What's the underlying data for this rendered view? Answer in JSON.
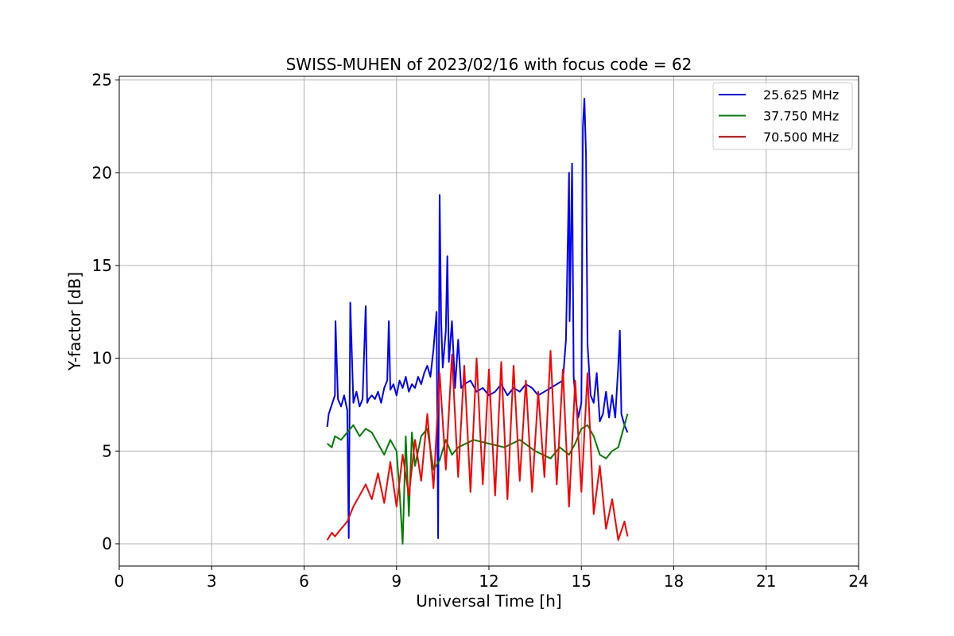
{
  "chart_data": {
    "type": "line",
    "title": "SWISS-MUHEN of 2023/02/16 with focus code = 62",
    "xlabel": "Universal Time [h]",
    "ylabel": "Y-factor [dB]",
    "xlim": [
      0,
      24
    ],
    "ylim": [
      -1.2,
      25.2
    ],
    "xticks": [
      0,
      3,
      6,
      9,
      12,
      15,
      18,
      21,
      24
    ],
    "yticks": [
      0,
      5,
      10,
      15,
      20,
      25
    ],
    "grid": true,
    "legend_position": "top-right",
    "series": [
      {
        "name": "25.625 MHz",
        "color": "#0000ff",
        "x": [
          6.75,
          6.8,
          6.9,
          7.0,
          7.02,
          7.1,
          7.2,
          7.3,
          7.4,
          7.45,
          7.5,
          7.6,
          7.7,
          7.8,
          7.9,
          8.0,
          8.05,
          8.1,
          8.2,
          8.3,
          8.4,
          8.5,
          8.6,
          8.7,
          8.75,
          8.8,
          8.9,
          9.0,
          9.1,
          9.2,
          9.3,
          9.4,
          9.5,
          9.6,
          9.7,
          9.8,
          9.9,
          10.0,
          10.1,
          10.2,
          10.3,
          10.35,
          10.4,
          10.45,
          10.5,
          10.6,
          10.65,
          10.7,
          10.8,
          10.9,
          11.0,
          11.1,
          11.2,
          11.4,
          11.6,
          11.8,
          12.0,
          12.2,
          12.4,
          12.6,
          12.8,
          13.0,
          13.2,
          13.4,
          13.6,
          13.8,
          14.0,
          14.2,
          14.4,
          14.5,
          14.6,
          14.62,
          14.7,
          14.75,
          14.8,
          14.9,
          15.0,
          15.05,
          15.1,
          15.15,
          15.2,
          15.3,
          15.4,
          15.5,
          15.6,
          15.7,
          15.8,
          15.9,
          16.0,
          16.1,
          16.2,
          16.25,
          16.3,
          16.4,
          16.5
        ],
        "values": [
          6.3,
          7.0,
          7.5,
          8.0,
          12.0,
          7.8,
          7.4,
          8.0,
          7.2,
          0.3,
          13.0,
          7.6,
          8.2,
          7.4,
          7.8,
          12.8,
          7.6,
          7.8,
          8.0,
          7.8,
          8.2,
          7.6,
          8.4,
          8.8,
          12.0,
          8.3,
          8.6,
          8.0,
          8.8,
          8.4,
          9.0,
          8.2,
          8.6,
          8.4,
          9.0,
          8.6,
          9.2,
          9.6,
          9.0,
          10.5,
          12.5,
          0.3,
          18.8,
          12.0,
          9.5,
          11.5,
          15.5,
          9.8,
          12.0,
          8.4,
          11.0,
          8.4,
          8.6,
          8.8,
          8.2,
          8.4,
          8.0,
          8.2,
          8.6,
          8.0,
          8.4,
          8.2,
          8.6,
          8.4,
          8.0,
          8.2,
          8.4,
          8.6,
          8.8,
          11.0,
          20.0,
          12.0,
          20.5,
          9.0,
          8.0,
          6.8,
          7.6,
          22.5,
          24.0,
          21.0,
          10.8,
          8.0,
          7.6,
          9.2,
          6.6,
          7.0,
          8.2,
          6.8,
          8.0,
          6.8,
          9.6,
          11.5,
          7.0,
          6.4,
          6.0
        ]
      },
      {
        "name": "37.750 MHz",
        "color": "#008000",
        "x": [
          6.75,
          6.9,
          7.0,
          7.2,
          7.4,
          7.6,
          7.8,
          8.0,
          8.2,
          8.4,
          8.6,
          8.8,
          9.0,
          9.1,
          9.2,
          9.3,
          9.4,
          9.5,
          9.6,
          9.8,
          10.0,
          10.2,
          10.4,
          10.6,
          10.8,
          11.0,
          11.5,
          12.0,
          12.5,
          13.0,
          13.5,
          14.0,
          14.3,
          14.6,
          14.8,
          15.0,
          15.2,
          15.4,
          15.6,
          15.8,
          16.0,
          16.2,
          16.4,
          16.5
        ],
        "values": [
          5.4,
          5.2,
          5.8,
          5.6,
          6.0,
          6.4,
          5.8,
          6.2,
          6.0,
          5.4,
          4.8,
          5.6,
          5.0,
          2.8,
          0.0,
          5.8,
          1.5,
          6.0,
          4.2,
          5.8,
          6.2,
          4.0,
          4.5,
          5.6,
          4.8,
          5.2,
          5.6,
          5.4,
          5.2,
          5.6,
          5.0,
          4.6,
          5.2,
          4.8,
          5.4,
          6.2,
          6.4,
          5.8,
          4.8,
          4.6,
          5.0,
          5.2,
          6.4,
          7.0
        ]
      },
      {
        "name": "70.500 MHz",
        "color": "#ff0000",
        "x": [
          6.75,
          6.9,
          7.0,
          7.2,
          7.4,
          7.6,
          7.8,
          8.0,
          8.2,
          8.4,
          8.6,
          8.8,
          9.0,
          9.2,
          9.4,
          9.6,
          9.8,
          10.0,
          10.2,
          10.4,
          10.6,
          10.8,
          11.0,
          11.2,
          11.4,
          11.6,
          11.8,
          12.0,
          12.2,
          12.4,
          12.6,
          12.8,
          13.0,
          13.2,
          13.4,
          13.6,
          13.8,
          14.0,
          14.2,
          14.4,
          14.6,
          14.8,
          15.0,
          15.2,
          15.4,
          15.6,
          15.8,
          16.0,
          16.2,
          16.4,
          16.5
        ],
        "values": [
          0.2,
          0.6,
          0.4,
          0.8,
          1.2,
          2.0,
          2.6,
          3.2,
          2.4,
          3.8,
          2.2,
          4.4,
          2.0,
          4.8,
          2.6,
          5.6,
          3.4,
          7.0,
          3.0,
          9.2,
          4.0,
          10.2,
          3.6,
          9.6,
          2.8,
          10.0,
          3.2,
          9.4,
          2.6,
          9.8,
          2.4,
          9.6,
          3.4,
          8.8,
          2.8,
          8.2,
          3.6,
          10.4,
          3.2,
          9.4,
          2.0,
          8.8,
          2.8,
          9.2,
          1.6,
          4.2,
          0.8,
          2.4,
          0.2,
          1.2,
          0.4
        ]
      }
    ]
  }
}
